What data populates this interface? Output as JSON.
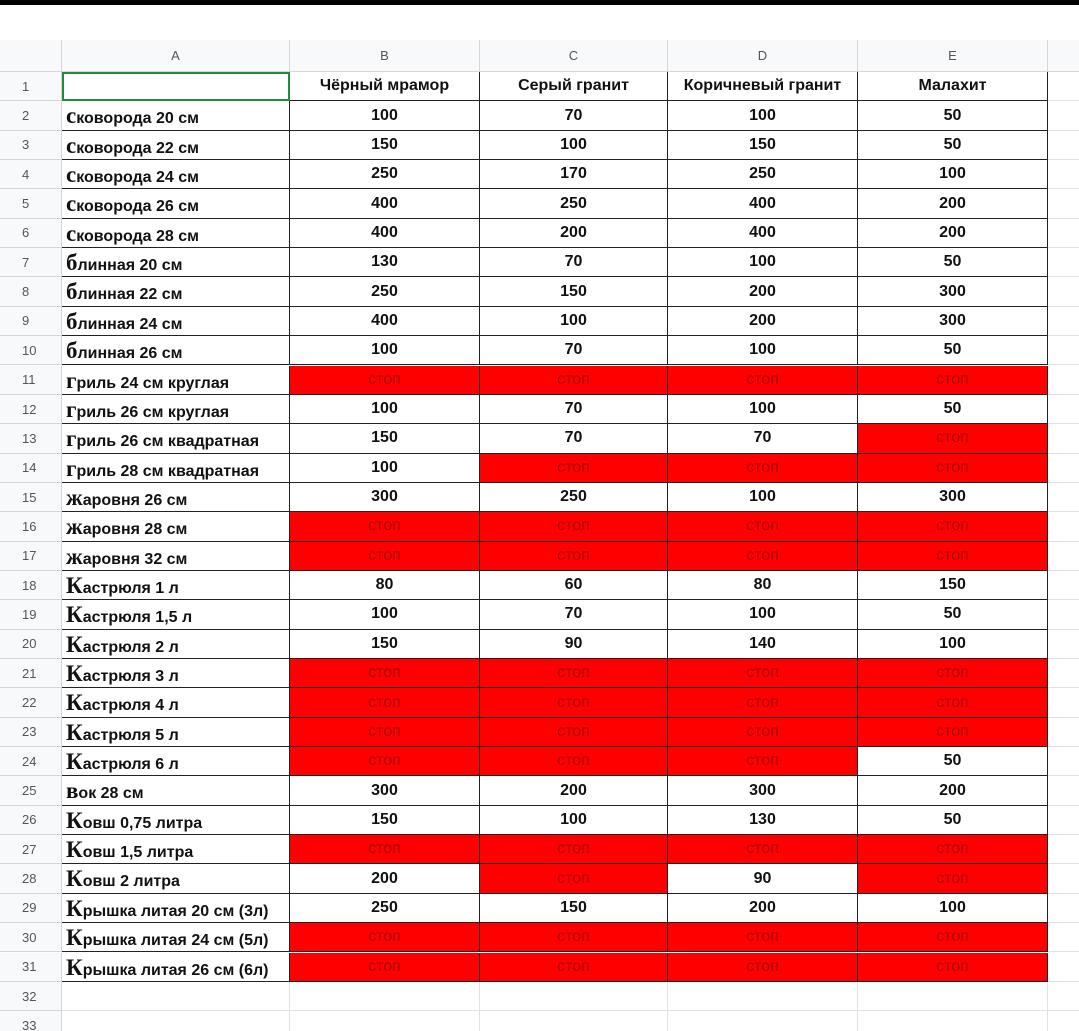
{
  "column_headers": [
    "A",
    "B",
    "C",
    "D",
    "E"
  ],
  "row_numbers": [
    1,
    2,
    3,
    4,
    5,
    6,
    7,
    8,
    9,
    10,
    11,
    12,
    13,
    14,
    15,
    16,
    17,
    18,
    19,
    20,
    21,
    22,
    23,
    24,
    25,
    26,
    27,
    28,
    29,
    30,
    31,
    32,
    33
  ],
  "table": {
    "header": [
      "Чёрный мрамор",
      "Серый гранит",
      "Коричневый гранит",
      "Малахит"
    ],
    "rows": [
      [
        "сковорода 20 см",
        100,
        70,
        100,
        50
      ],
      [
        "сковорода 22 см",
        150,
        100,
        150,
        50
      ],
      [
        "сковорода 24 см",
        250,
        170,
        250,
        100
      ],
      [
        "сковорода 26 см",
        400,
        250,
        400,
        200
      ],
      [
        "сковорода 28 см",
        400,
        200,
        400,
        200
      ],
      [
        "блинная 20 см",
        130,
        70,
        100,
        50
      ],
      [
        "блинная 22 см",
        250,
        150,
        200,
        300
      ],
      [
        "блинная 24 см",
        400,
        100,
        200,
        300
      ],
      [
        "блинная 26 см",
        100,
        70,
        100,
        50
      ],
      [
        "гриль 24 см круглая",
        "стоп",
        "стоп",
        "стоп",
        "стоп"
      ],
      [
        "гриль 26 см круглая",
        100,
        70,
        100,
        50
      ],
      [
        "гриль 26 см квадратная",
        150,
        70,
        70,
        "стоп"
      ],
      [
        "гриль 28 см квадратная",
        100,
        "стоп",
        "стоп",
        "стоп"
      ],
      [
        "жаровня 26 см",
        300,
        250,
        100,
        300
      ],
      [
        "жаровня 28 см",
        "стоп",
        "стоп",
        "стоп",
        "стоп"
      ],
      [
        "жаровня 32 см",
        "стоп",
        "стоп",
        "стоп",
        "стоп"
      ],
      [
        "Кастрюля 1 л",
        80,
        60,
        80,
        150
      ],
      [
        "Кастрюля 1,5 л",
        100,
        70,
        100,
        50
      ],
      [
        "Кастрюля 2 л",
        150,
        90,
        140,
        100
      ],
      [
        "Кастрюля 3 л",
        "стоп",
        "стоп",
        "стоп",
        "стоп"
      ],
      [
        "Кастрюля 4 л",
        "стоп",
        "стоп",
        "стоп",
        "стоп"
      ],
      [
        "Кастрюля 5 л",
        "стоп",
        "стоп",
        "стоп",
        "стоп"
      ],
      [
        "Кастрюля 6 л",
        "стоп",
        "стоп",
        "стоп",
        50
      ],
      [
        "вок 28 см",
        300,
        200,
        300,
        200
      ],
      [
        "Ковш 0,75 литра",
        150,
        100,
        130,
        50
      ],
      [
        "Ковш 1,5 литра",
        "стоп",
        "стоп",
        "стоп",
        "стоп"
      ],
      [
        "Ковш 2 литра",
        200,
        "стоп",
        90,
        "стоп"
      ],
      [
        "Крышка литая 20 см (3л)",
        250,
        150,
        200,
        100
      ],
      [
        "Крышка литая 24 см (5л)",
        "стоп",
        "стоп",
        "стоп",
        "стоп"
      ],
      [
        "Крышка литая 26 см (6л)",
        "стоп",
        "стоп",
        "стоп",
        "стоп"
      ]
    ]
  }
}
